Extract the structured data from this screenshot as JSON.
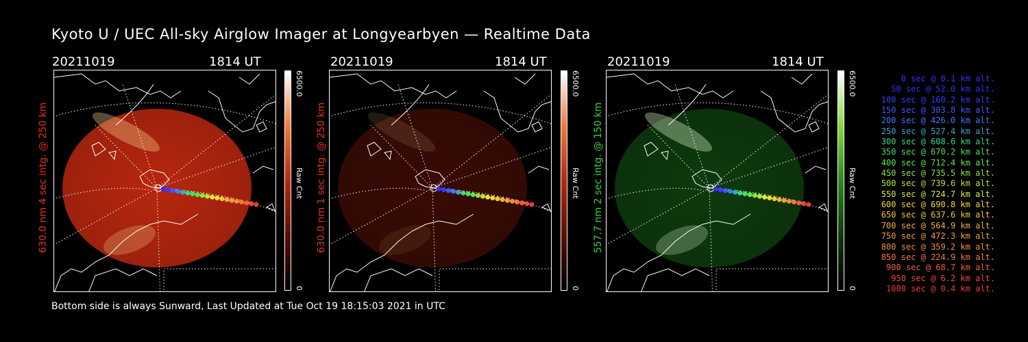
{
  "title": "Kyoto U / UEC All-sky Airglow Imager at Longyearbyen — Realtime Data",
  "footer": "Bottom side is always Sunward, Last Updated at Tue Oct 19 18:15:03 2021 in UTC",
  "panels": [
    {
      "date": "20211019",
      "time": "1814 UT",
      "ylabel": "630.0 nm 4 sec intg. @ 250 km",
      "label_color": "#e8321e",
      "cbar_max": "6500.0",
      "cbar_min": "0",
      "cbar_label": "Raw Cnt",
      "image_color": "#b8270f",
      "max_color": "#ffd890"
    },
    {
      "date": "20211019",
      "time": "1814 UT",
      "ylabel": "630.0 nm 1 sec intg. @ 250 km",
      "label_color": "#e8321e",
      "cbar_max": "6500.0",
      "cbar_min": "0",
      "cbar_label": "Raw Cnt",
      "image_color": "#3a0b05",
      "max_color": "#ffd890"
    },
    {
      "date": "20211019",
      "time": "1814 UT",
      "ylabel": "557.7 nm 2 sec intg. @ 150 km",
      "label_color": "#3ad33a",
      "cbar_max": "6500.0",
      "cbar_min": "0",
      "cbar_label": "Raw Cnt",
      "image_color": "#0e3a0e",
      "max_color": "#e8ffd8"
    }
  ],
  "legend": [
    {
      "text": "0 sec @   0.1 km alt.",
      "color": "#3030ff"
    },
    {
      "text": "50 sec @  52.0 km alt.",
      "color": "#3030ff"
    },
    {
      "text": "100 sec @ 160.2 km alt.",
      "color": "#3a3aff"
    },
    {
      "text": "150 sec @ 303.8 km alt.",
      "color": "#3c5cff"
    },
    {
      "text": "200 sec @ 426.0 km alt.",
      "color": "#3c7cff"
    },
    {
      "text": "250 sec @ 527.4 km alt.",
      "color": "#3aa8c8"
    },
    {
      "text": "300 sec @ 608.6 km alt.",
      "color": "#3ad88a"
    },
    {
      "text": "350 sec @ 670.2 km alt.",
      "color": "#4ae05a"
    },
    {
      "text": "400 sec @ 712.4 km alt.",
      "color": "#5ae84a"
    },
    {
      "text": "450 sec @ 735.5 km alt.",
      "color": "#8ae83a"
    },
    {
      "text": "500 sec @ 739.6 km alt.",
      "color": "#b8e83a"
    },
    {
      "text": "550 sec @ 724.7 km alt.",
      "color": "#e0e83a"
    },
    {
      "text": "600 sec @ 690.8 km alt.",
      "color": "#f0d83a"
    },
    {
      "text": "650 sec @ 637.6 km alt.",
      "color": "#f0c83a"
    },
    {
      "text": "700 sec @ 564.9 km alt.",
      "color": "#f0b03a"
    },
    {
      "text": "750 sec @ 472.3 km alt.",
      "color": "#f0a03a"
    },
    {
      "text": "800 sec @ 359.2 km alt.",
      "color": "#f0903a"
    },
    {
      "text": "850 sec @ 224.9 km alt.",
      "color": "#f07a3a"
    },
    {
      "text": "900 sec @  68.7 km alt.",
      "color": "#f0603a"
    },
    {
      "text": "950 sec @   6.2 km alt.",
      "color": "#f04a3a"
    },
    {
      "text": "1000 sec @   0.4 km alt.",
      "color": "#f03a3a"
    }
  ]
}
